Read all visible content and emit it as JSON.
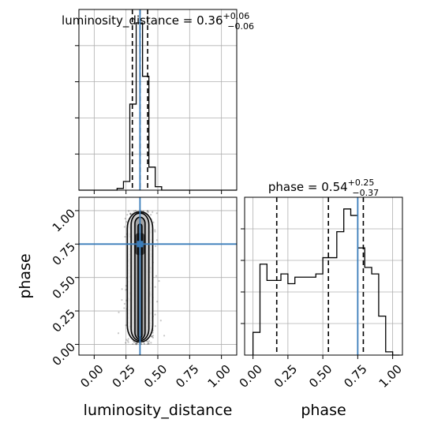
{
  "colors": {
    "truth": "#3b7dba",
    "ink": "#000000",
    "grid": "#b0b0b0"
  },
  "chart_data": [
    {
      "type": "histogram",
      "panel": "luminosity_distance marginal",
      "title": {
        "param": "luminosity_distance",
        "median": "0.36",
        "plus": "+0.06",
        "minus": "−0.06"
      },
      "xlim": [
        -0.12,
        1.12
      ],
      "bin_edges": [
        -0.12,
        -0.07,
        -0.02,
        0.03,
        0.08,
        0.13,
        0.18,
        0.23,
        0.28,
        0.33,
        0.38,
        0.43,
        0.48,
        0.53,
        0.58,
        0.63,
        0.68,
        0.73,
        0.78,
        0.83,
        0.88,
        0.93,
        0.98,
        1.03,
        1.08,
        1.12
      ],
      "counts": [
        0,
        0,
        0,
        0,
        0,
        0,
        4,
        20,
        198,
        385,
        262,
        53,
        8,
        0,
        0,
        0,
        0,
        0,
        0,
        0,
        0,
        0,
        0,
        0,
        0
      ],
      "quantiles": [
        0.3,
        0.36,
        0.42
      ],
      "truth": 0.36,
      "grid": true
    },
    {
      "type": "histogram",
      "panel": "phase marginal",
      "title": {
        "param": "phase",
        "median": "0.54",
        "plus": "+0.25",
        "minus": "−0.37"
      },
      "xlim": [
        -0.06,
        1.07
      ],
      "bin_edges": [
        0.0,
        0.05,
        0.1,
        0.15,
        0.2,
        0.25,
        0.3,
        0.35,
        0.4,
        0.45,
        0.5,
        0.55,
        0.6,
        0.65,
        0.7,
        0.75,
        0.8,
        0.85,
        0.9,
        0.95,
        1.0,
        1.05
      ],
      "counts": [
        7,
        28,
        23,
        23,
        25,
        22,
        24,
        24,
        24,
        25,
        30,
        30,
        38,
        45,
        43,
        33,
        27,
        25,
        12,
        1,
        0
      ],
      "quantiles": [
        0.17,
        0.54,
        0.79
      ],
      "truth": 0.75,
      "xticks": [
        "0.00",
        "0.25",
        "0.50",
        "0.75",
        "1.00"
      ],
      "xlabel": "phase",
      "grid": true
    },
    {
      "type": "scatter",
      "panel": "2d posterior luminosity_distance vs phase",
      "xlim": [
        -0.12,
        1.12
      ],
      "ylim": [
        -0.08,
        1.1
      ],
      "truth": {
        "x": 0.36,
        "y": 0.75
      },
      "samples": {
        "count": 1100,
        "x_center": 0.36,
        "x_spread": 0.05,
        "y_range": [
          0.0,
          1.0
        ]
      },
      "contour_levels": [
        {
          "x_halfwidth": 0.015,
          "y_range": [
            0.05,
            0.9
          ]
        },
        {
          "x_halfwidth": 0.04,
          "y_range": [
            0.04,
            0.95
          ]
        },
        {
          "x_halfwidth": 0.07,
          "y_range": [
            0.03,
            0.98
          ]
        },
        {
          "x_halfwidth": 0.1,
          "y_range": [
            0.02,
            0.99
          ]
        }
      ],
      "xticks": [
        "0.00",
        "0.25",
        "0.50",
        "0.75",
        "1.00"
      ],
      "yticks": [
        "0.00",
        "0.25",
        "0.50",
        "0.75",
        "1.00"
      ],
      "xlabel": "luminosity_distance",
      "ylabel": "phase",
      "grid": true
    }
  ]
}
